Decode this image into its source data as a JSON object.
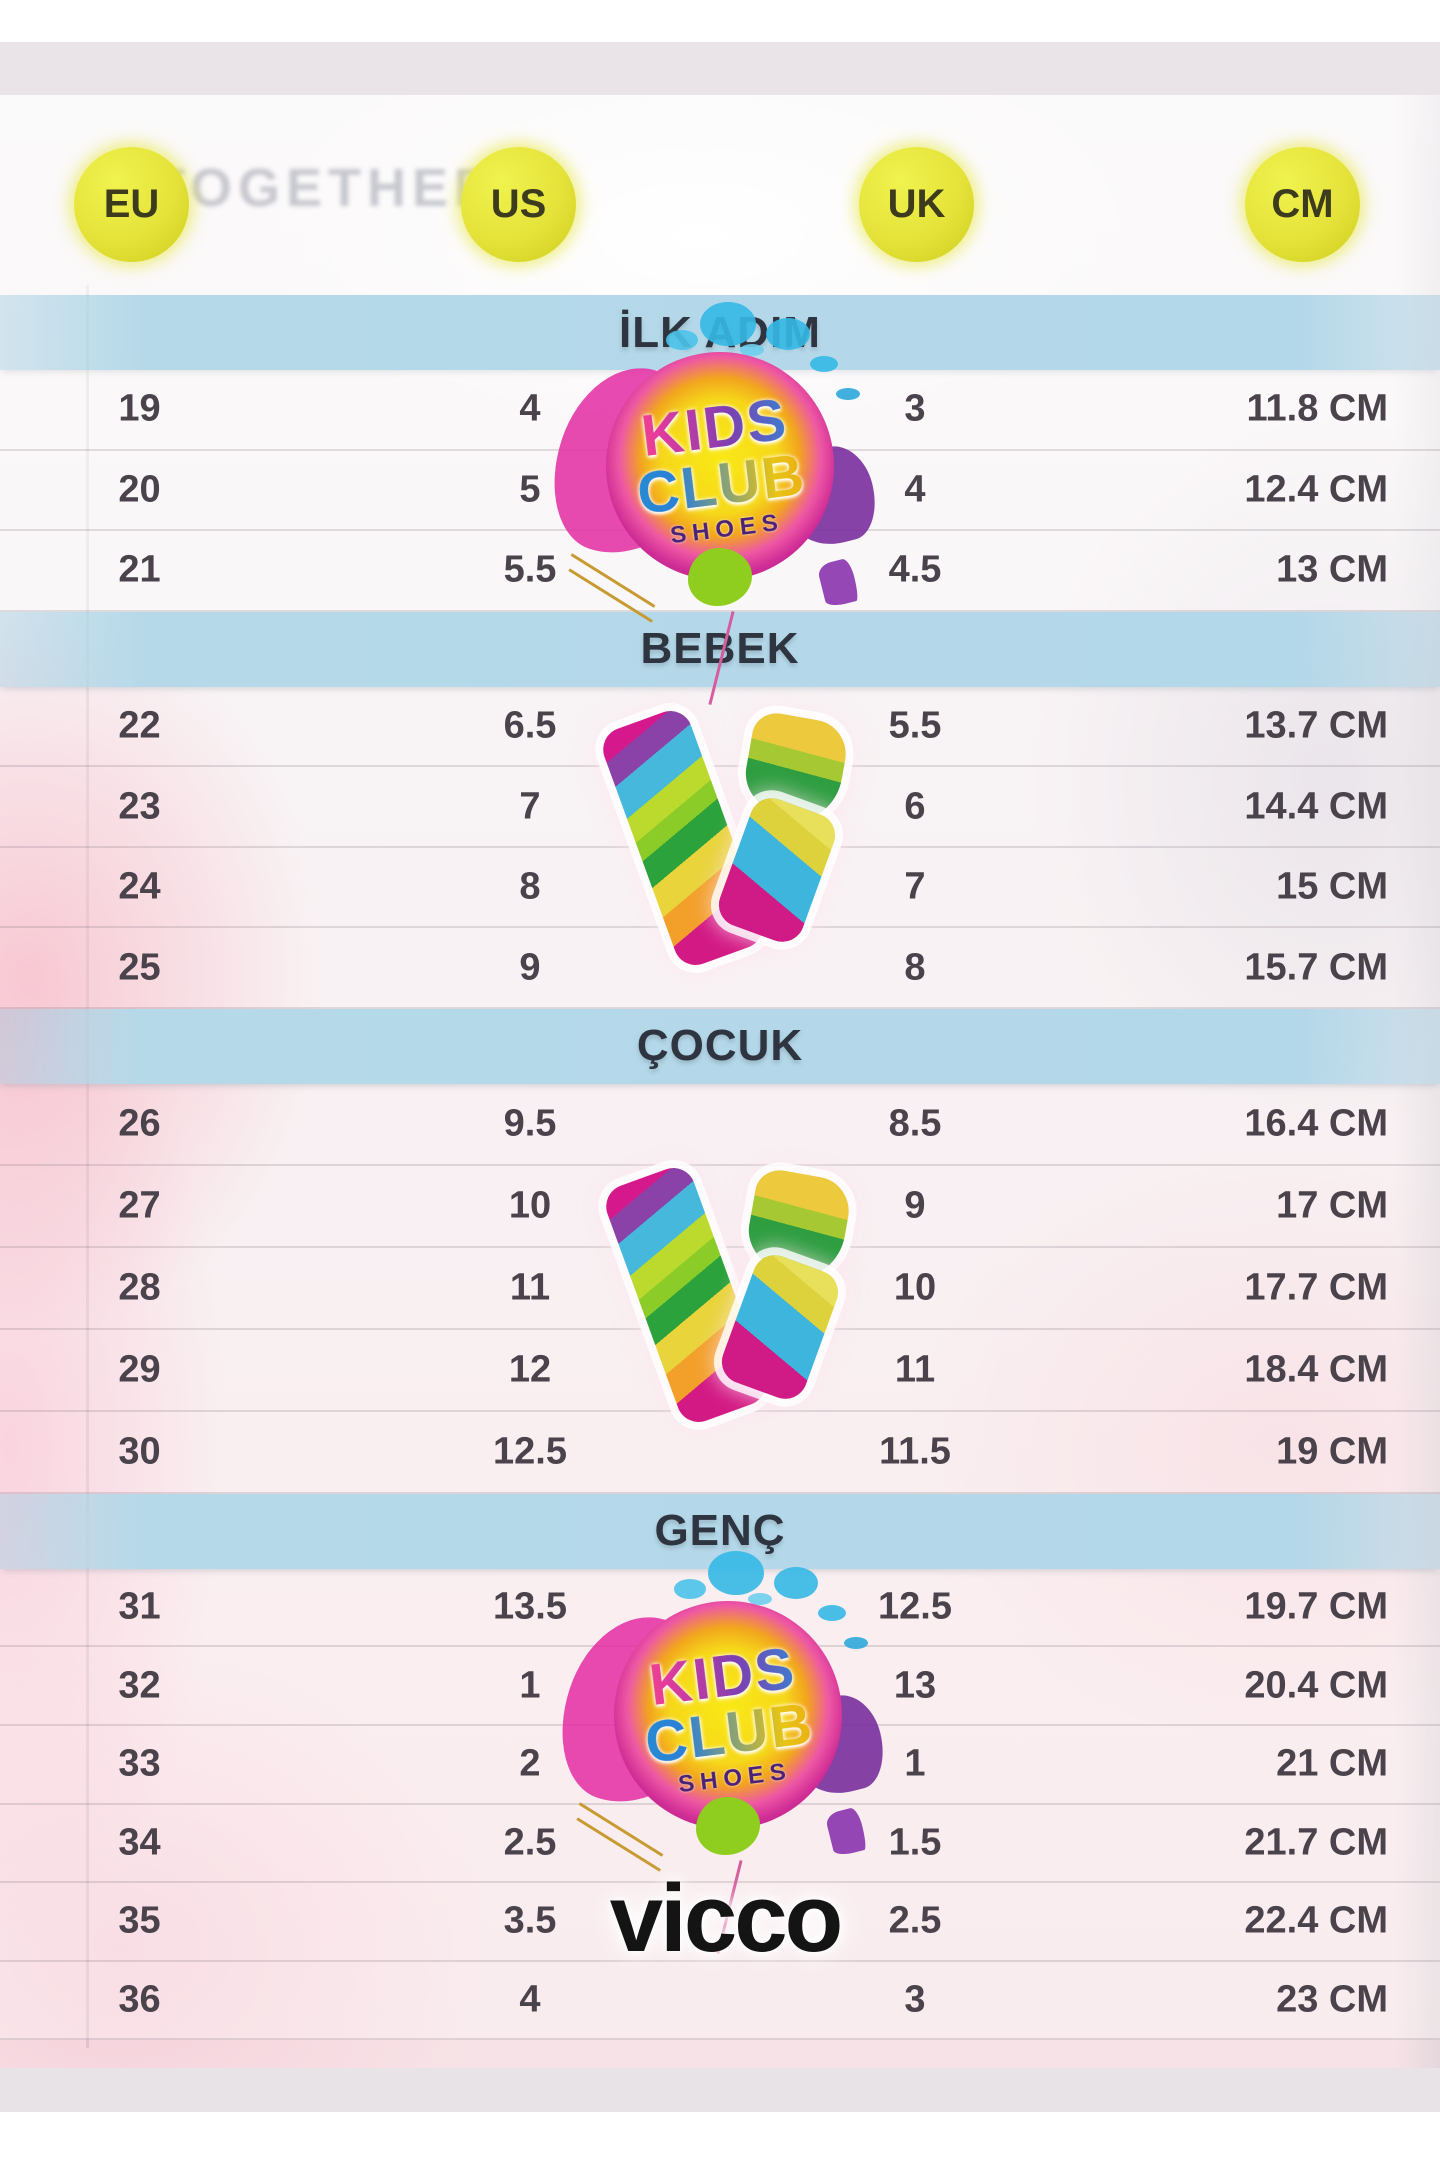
{
  "background": {
    "photo_text": "TOGETHER"
  },
  "header": {
    "columns": [
      {
        "id": "eu",
        "label": "EU"
      },
      {
        "id": "us",
        "label": "US"
      },
      {
        "id": "uk",
        "label": "UK"
      },
      {
        "id": "cm",
        "label": "CM"
      }
    ]
  },
  "sections": [
    {
      "title": "İLK ADIM",
      "logo": "kids-club-logo",
      "rows": [
        {
          "eu": "19",
          "us": "4",
          "uk": "3",
          "cm": "11.8 CM"
        },
        {
          "eu": "20",
          "us": "5",
          "uk": "4",
          "cm": "12.4 CM"
        },
        {
          "eu": "21",
          "us": "5.5",
          "uk": "4.5",
          "cm": "13 CM"
        }
      ]
    },
    {
      "title": "BEBEK",
      "logo": "vicco-v-logo",
      "rows": [
        {
          "eu": "22",
          "us": "6.5",
          "uk": "5.5",
          "cm": "13.7 CM"
        },
        {
          "eu": "23",
          "us": "7",
          "uk": "6",
          "cm": "14.4 CM"
        },
        {
          "eu": "24",
          "us": "8",
          "uk": "7",
          "cm": "15 CM"
        },
        {
          "eu": "25",
          "us": "9",
          "uk": "8",
          "cm": "15.7 CM"
        }
      ]
    },
    {
      "title": "ÇOCUK",
      "logo": "vicco-v-logo",
      "rows": [
        {
          "eu": "26",
          "us": "9.5",
          "uk": "8.5",
          "cm": "16.4 CM"
        },
        {
          "eu": "27",
          "us": "10",
          "uk": "9",
          "cm": "17 CM"
        },
        {
          "eu": "28",
          "us": "11",
          "uk": "10",
          "cm": "17.7 CM"
        },
        {
          "eu": "29",
          "us": "12",
          "uk": "11",
          "cm": "18.4 CM"
        },
        {
          "eu": "30",
          "us": "12.5",
          "uk": "11.5",
          "cm": "19 CM"
        }
      ]
    },
    {
      "title": "GENÇ",
      "logo": "kids-club-logo",
      "rows": [
        {
          "eu": "31",
          "us": "13.5",
          "uk": "12.5",
          "cm": "19.7 CM"
        },
        {
          "eu": "32",
          "us": "1",
          "uk": "13",
          "cm": "20.4 CM"
        },
        {
          "eu": "33",
          "us": "2",
          "uk": "1",
          "cm": "21 CM"
        },
        {
          "eu": "34",
          "us": "2.5",
          "uk": "1.5",
          "cm": "21.7 CM"
        },
        {
          "eu": "35",
          "us": "3.5",
          "uk": "2.5",
          "cm": "22.4 CM"
        },
        {
          "eu": "36",
          "us": "4",
          "uk": "3",
          "cm": "23 CM"
        }
      ]
    }
  ],
  "brand": {
    "wordmark": "vicco",
    "logo_kids": "KIDS",
    "logo_club": "CLUB",
    "logo_shoes": "SHOES"
  },
  "colors": {
    "badge_yellow": "#e5e33a",
    "section_band_blue": "#b5d9e9",
    "row_text": "#4a434b",
    "band_text": "#2e3540",
    "wordmark_black": "#141414"
  }
}
